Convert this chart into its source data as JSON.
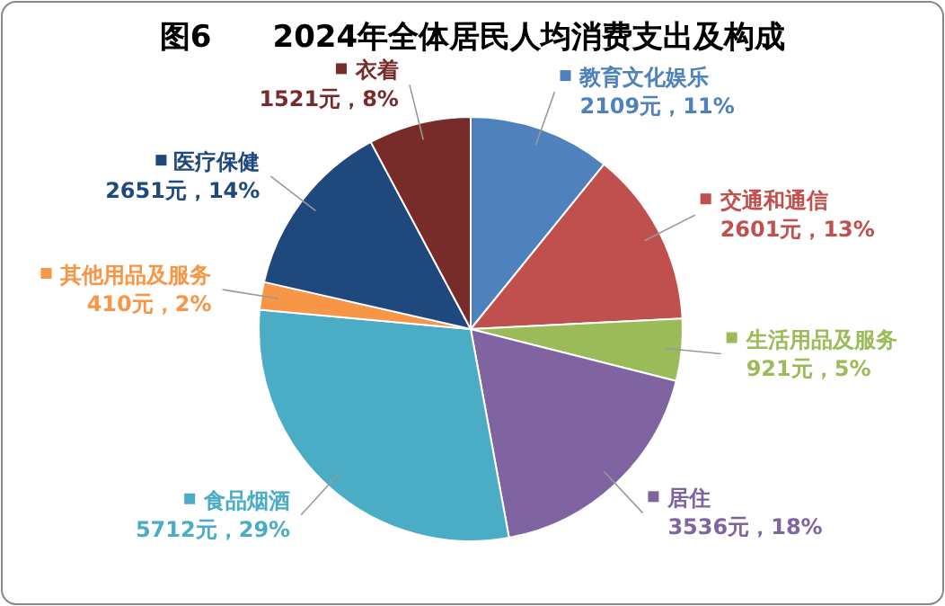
{
  "chart_data": {
    "type": "pie",
    "title": "图6　　2024年全体居民人均消费支出及构成",
    "categories": [
      "教育文化娱乐",
      "交通和通信",
      "生活用品及服务",
      "居住",
      "食品烟酒",
      "其他用品及服务",
      "医疗保健",
      "衣着"
    ],
    "values": [
      2109,
      2601,
      921,
      3536,
      5712,
      410,
      2651,
      1521
    ],
    "value_labels": [
      "2109元，11%",
      "2601元，13%",
      "921元，5%",
      "3536元，18%",
      "5712元，29%",
      "410元，2%",
      "2651元，14%",
      "1521元，8%"
    ],
    "legend": "right",
    "colors": [
      "#4f81bd",
      "#c0504d",
      "#9bbb59",
      "#8064a2",
      "#4bacc6",
      "#f79646",
      "#1f497d",
      "#772c2a"
    ]
  }
}
